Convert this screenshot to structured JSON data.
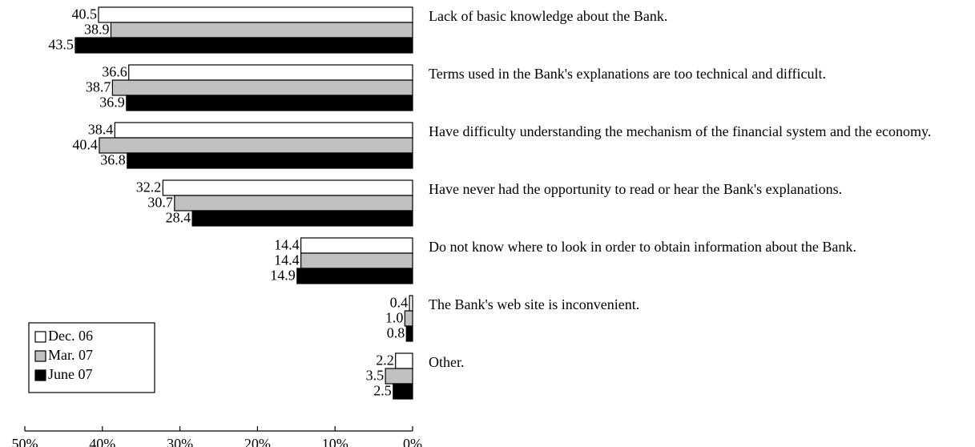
{
  "chart_data": {
    "type": "bar",
    "orientation": "horizontal",
    "reversed": true,
    "categories": [
      "Lack of basic knowledge about the Bank.",
      "Terms used in the Bank's explanations are too technical and difficult.",
      "Have difficulty understanding the mechanism of the financial system and the economy.",
      "Have never had the opportunity to read or hear the Bank's explanations.",
      "Do not know where to look in order to obtain information about the Bank.",
      "The Bank's web site is inconvenient.",
      "Other."
    ],
    "series": [
      {
        "name": "Dec. 06",
        "color": "#ffffff",
        "values": [
          40.5,
          36.6,
          38.4,
          32.2,
          14.4,
          0.4,
          2.2
        ],
        "value_labels": [
          "40.5",
          "36.6",
          "38.4",
          "32.2",
          "14.4",
          "0.4",
          "2.2"
        ]
      },
      {
        "name": "Mar. 07",
        "color": "#c0c0c0",
        "values": [
          38.9,
          38.7,
          40.4,
          30.7,
          14.4,
          1.0,
          3.5
        ],
        "value_labels": [
          "38.9",
          "38.7",
          "40.4",
          "30.7",
          "14.4",
          "1.0",
          "3.5"
        ]
      },
      {
        "name": "June 07",
        "color": "#000000",
        "values": [
          43.5,
          36.9,
          36.8,
          28.4,
          14.9,
          0.8,
          2.5
        ],
        "value_labels": [
          "43.5",
          "36.9",
          "36.8",
          "28.4",
          "14.9",
          "0.8",
          "2.5"
        ]
      }
    ],
    "xlim": [
      0,
      50
    ],
    "xticks": [
      {
        "value": 50,
        "label": "50%"
      },
      {
        "value": 40,
        "label": "40%"
      },
      {
        "value": 30,
        "label": "30%"
      },
      {
        "value": 20,
        "label": "20%"
      },
      {
        "value": 10,
        "label": "10%"
      },
      {
        "value": 0,
        "label": "0%"
      }
    ],
    "legend": "lower left"
  }
}
